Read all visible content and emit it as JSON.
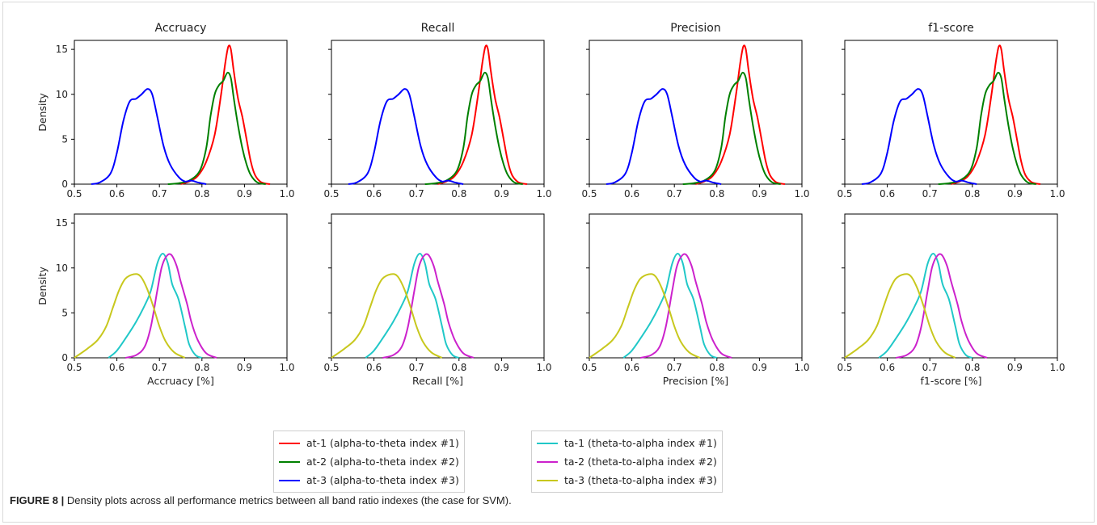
{
  "caption": {
    "label": "FIGURE 8 |",
    "text": "Density plots across all performance metrics between all band ratio indexes (the case for SVM)."
  },
  "chart_data": {
    "type": "line",
    "grid_rows": 2,
    "grid_cols": 4,
    "x_range": [
      0.5,
      1.0
    ],
    "y_range": [
      0,
      16
    ],
    "x_ticks": [
      "0.5",
      "0.6",
      "0.7",
      "0.8",
      "0.9",
      "1.0"
    ],
    "y_ticks": [
      "0",
      "5",
      "10",
      "15"
    ],
    "column_titles": [
      "Accruacy",
      "Recall",
      "Precision",
      "f1-score"
    ],
    "x_labels": [
      "Accruacy [%]",
      "Recall [%]",
      "Precision [%]",
      "f1-score [%]"
    ],
    "ylabel": "Density",
    "grid": false,
    "legends": [
      {
        "placement": "bottom-center-left",
        "series": [
          0,
          1,
          2
        ]
      },
      {
        "placement": "bottom-center-right",
        "series": [
          3,
          4,
          5
        ]
      }
    ],
    "series": [
      {
        "name": "at-1 (alpha-to-theta index #1)",
        "row": 0,
        "color": "#ff0000",
        "points": [
          [
            0.75,
            0
          ],
          [
            0.77,
            0.3
          ],
          [
            0.79,
            0.9
          ],
          [
            0.81,
            2.5
          ],
          [
            0.83,
            5.5
          ],
          [
            0.845,
            10
          ],
          [
            0.855,
            13.5
          ],
          [
            0.862,
            15.3
          ],
          [
            0.868,
            15
          ],
          [
            0.875,
            12.5
          ],
          [
            0.885,
            9.5
          ],
          [
            0.895,
            7.5
          ],
          [
            0.905,
            5
          ],
          [
            0.915,
            2.5
          ],
          [
            0.925,
            1
          ],
          [
            0.94,
            0.2
          ],
          [
            0.96,
            0
          ]
        ]
      },
      {
        "name": "at-2 (alpha-to-theta index #2)",
        "row": 0,
        "color": "#008000",
        "points": [
          [
            0.72,
            0
          ],
          [
            0.745,
            0.1
          ],
          [
            0.77,
            0.4
          ],
          [
            0.795,
            1.5
          ],
          [
            0.81,
            4
          ],
          [
            0.82,
            7.5
          ],
          [
            0.83,
            10
          ],
          [
            0.84,
            11
          ],
          [
            0.85,
            11.5
          ],
          [
            0.86,
            12.4
          ],
          [
            0.868,
            11.8
          ],
          [
            0.875,
            9.5
          ],
          [
            0.885,
            6.5
          ],
          [
            0.895,
            4
          ],
          [
            0.905,
            2.2
          ],
          [
            0.915,
            1
          ],
          [
            0.93,
            0.2
          ],
          [
            0.95,
            0
          ]
        ]
      },
      {
        "name": "at-3 (alpha-to-theta index #3)",
        "row": 0,
        "color": "#0000ff",
        "points": [
          [
            0.54,
            0
          ],
          [
            0.56,
            0.2
          ],
          [
            0.585,
            1.2
          ],
          [
            0.6,
            3.5
          ],
          [
            0.615,
            7
          ],
          [
            0.63,
            9.2
          ],
          [
            0.645,
            9.5
          ],
          [
            0.658,
            10
          ],
          [
            0.672,
            10.6
          ],
          [
            0.683,
            10
          ],
          [
            0.695,
            7.5
          ],
          [
            0.71,
            4.2
          ],
          [
            0.725,
            2.2
          ],
          [
            0.745,
            0.8
          ],
          [
            0.76,
            0.3
          ],
          [
            0.775,
            0.4
          ],
          [
            0.79,
            0.2
          ],
          [
            0.81,
            0
          ]
        ]
      },
      {
        "name": "ta-1 (theta-to-alpha index #1)",
        "row": 1,
        "color": "#20c8c8",
        "points": [
          [
            0.58,
            0
          ],
          [
            0.6,
            0.8
          ],
          [
            0.625,
            2.5
          ],
          [
            0.645,
            4
          ],
          [
            0.665,
            5.8
          ],
          [
            0.68,
            7.5
          ],
          [
            0.695,
            10.5
          ],
          [
            0.708,
            11.6
          ],
          [
            0.72,
            10.5
          ],
          [
            0.73,
            8.2
          ],
          [
            0.745,
            6.5
          ],
          [
            0.76,
            3.5
          ],
          [
            0.77,
            1.5
          ],
          [
            0.785,
            0.3
          ],
          [
            0.8,
            0
          ]
        ]
      },
      {
        "name": "ta-2 (theta-to-alpha index #2)",
        "row": 1,
        "color": "#cc22cc",
        "points": [
          [
            0.62,
            0
          ],
          [
            0.645,
            0.3
          ],
          [
            0.665,
            1.2
          ],
          [
            0.68,
            3.5
          ],
          [
            0.695,
            7.5
          ],
          [
            0.705,
            10
          ],
          [
            0.715,
            11.2
          ],
          [
            0.727,
            11.5
          ],
          [
            0.74,
            10.3
          ],
          [
            0.75,
            8.5
          ],
          [
            0.765,
            6
          ],
          [
            0.775,
            4
          ],
          [
            0.79,
            2
          ],
          [
            0.81,
            0.5
          ],
          [
            0.835,
            0
          ]
        ]
      },
      {
        "name": "ta-3 (theta-to-alpha index #3)",
        "row": 1,
        "color": "#c8c81e",
        "points": [
          [
            0.5,
            0
          ],
          [
            0.53,
            1
          ],
          [
            0.555,
            2
          ],
          [
            0.575,
            3.5
          ],
          [
            0.59,
            5.5
          ],
          [
            0.605,
            7.5
          ],
          [
            0.62,
            8.8
          ],
          [
            0.64,
            9.3
          ],
          [
            0.655,
            9.1
          ],
          [
            0.67,
            7.8
          ],
          [
            0.685,
            5.8
          ],
          [
            0.7,
            3.5
          ],
          [
            0.715,
            1.8
          ],
          [
            0.735,
            0.6
          ],
          [
            0.76,
            0
          ]
        ]
      }
    ]
  }
}
